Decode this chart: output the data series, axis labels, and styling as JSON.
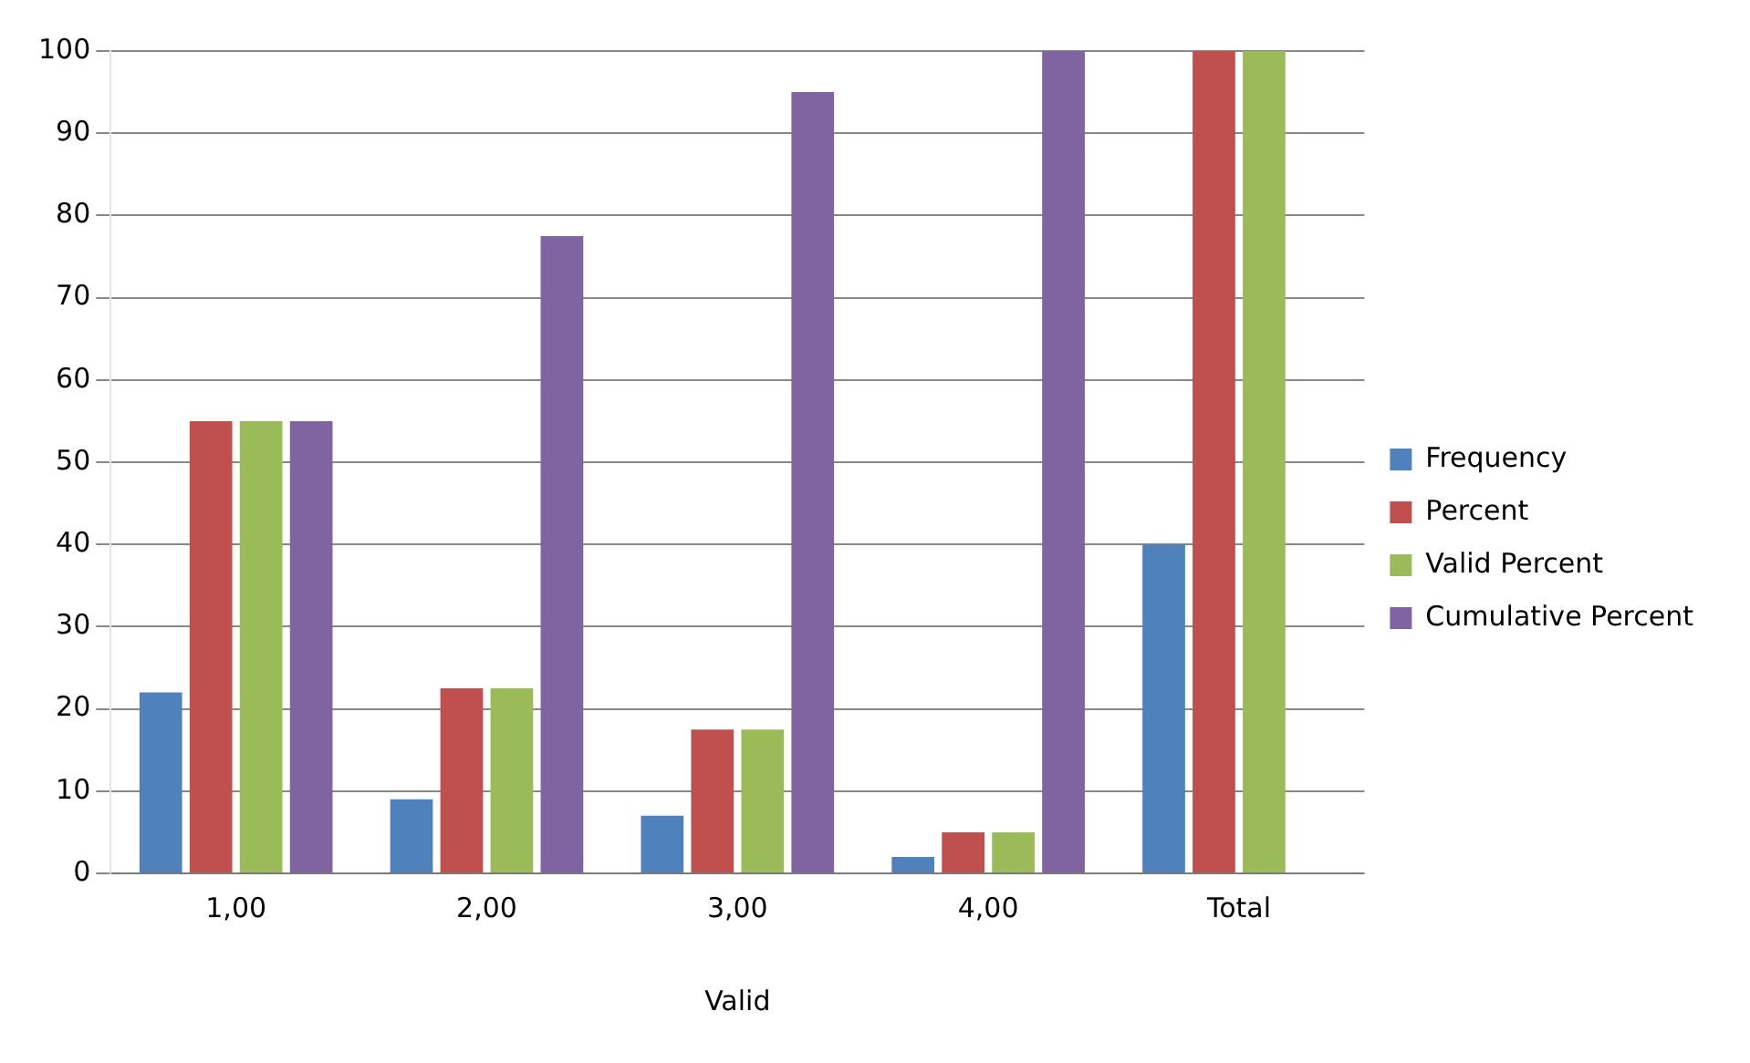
{
  "chart_data": {
    "type": "bar",
    "categories": [
      "1,00",
      "2,00",
      "3,00",
      "4,00",
      "Total"
    ],
    "xlabel": "Valid",
    "series": [
      {
        "name": "Frequency",
        "color": "#4f81bd",
        "values": [
          22,
          9,
          7,
          2,
          40
        ]
      },
      {
        "name": "Percent",
        "color": "#c0504d",
        "values": [
          55,
          22.5,
          17.5,
          5,
          100
        ]
      },
      {
        "name": "Valid Percent",
        "color": "#9bbb59",
        "values": [
          55,
          22.5,
          17.5,
          5,
          100
        ]
      },
      {
        "name": "Cumulative Percent",
        "color": "#8064a2",
        "values": [
          55,
          77.5,
          95,
          100,
          null
        ]
      }
    ],
    "ylim": [
      0,
      100
    ],
    "yticks": [
      0,
      10,
      20,
      30,
      40,
      50,
      60,
      70,
      80,
      90,
      100
    ],
    "grid": "y",
    "legend": "right"
  }
}
